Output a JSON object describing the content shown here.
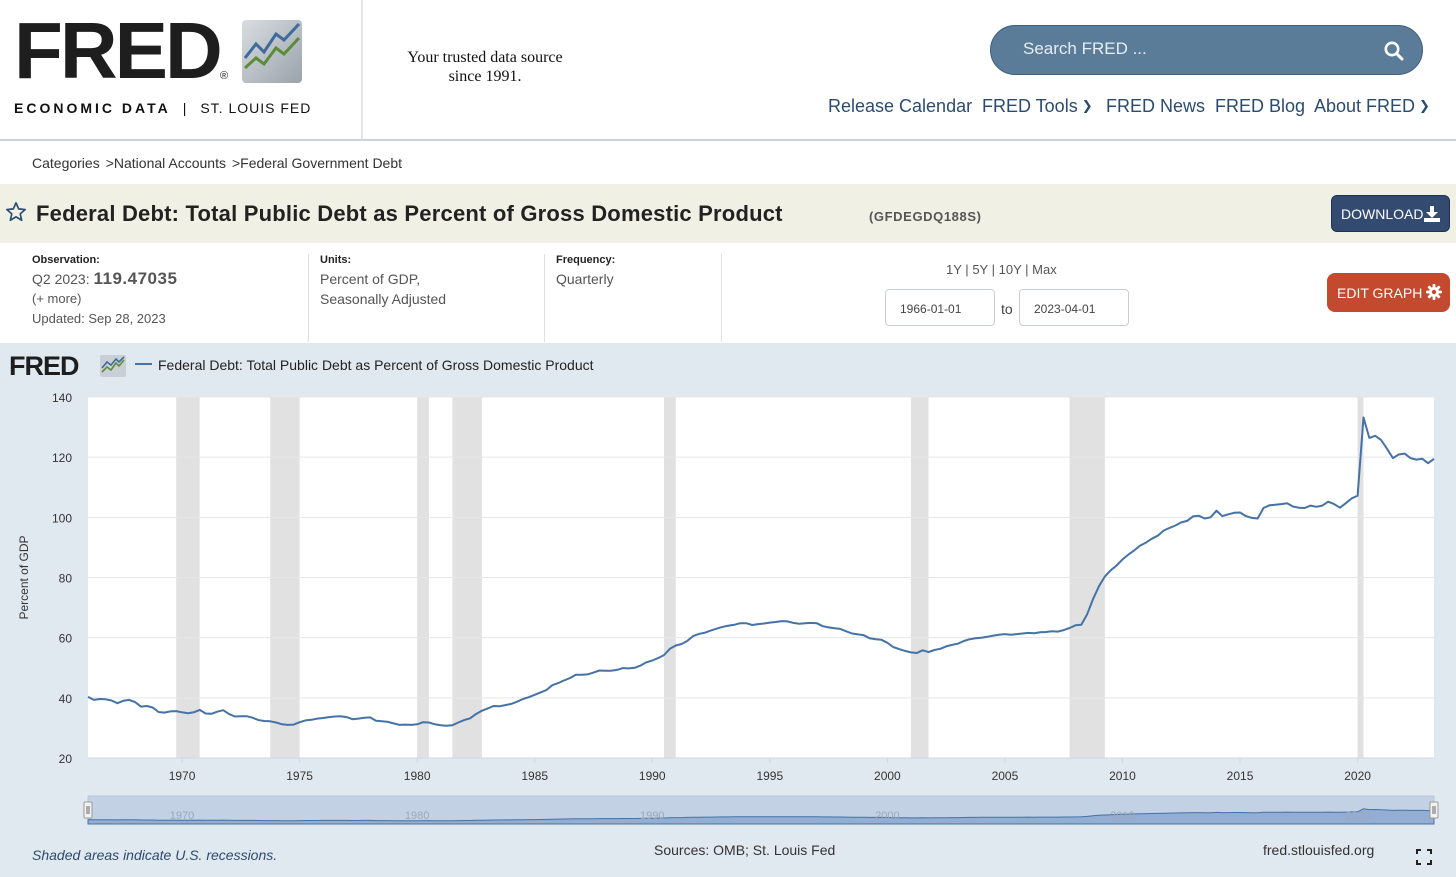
{
  "header": {
    "logo_text": "FRED",
    "logo_reg": "®",
    "logo_sub_bold": "ECONOMIC DATA",
    "logo_sub_sep": "|",
    "logo_sub_rest": "ST. LOUIS FED",
    "tagline_line1": "Your trusted data source",
    "tagline_line2": "since 1991.",
    "search_placeholder": "Search FRED ...",
    "nav": [
      {
        "label": "Release Calendar"
      },
      {
        "label": "FRED Tools"
      },
      {
        "label": "FRED News"
      },
      {
        "label": "FRED Blog"
      },
      {
        "label": "About FRED"
      }
    ],
    "colors": {
      "search_bg": "#5b7c99",
      "nav_text": "#2a4b72"
    }
  },
  "breadcrumb": [
    {
      "label": "Categories"
    },
    {
      "label": "National Accounts"
    },
    {
      "label": "Federal Government Debt"
    }
  ],
  "breadcrumb_sep": ">",
  "series": {
    "title": "Federal Debt: Total Public Debt as Percent of Gross Domestic Product",
    "id": "(GFDEGDQ188S)",
    "download_label": "DOWNLOAD",
    "edit_label": "EDIT GRAPH"
  },
  "meta": {
    "observation_label": "Observation:",
    "observation_period": "Q2 2023:",
    "observation_value": "119.47035",
    "more_label": "(+ more)",
    "updated": "Updated: Sep 28, 2023",
    "units_label": "Units:",
    "units_line1": "Percent of GDP,",
    "units_line2": "Seasonally Adjusted",
    "frequency_label": "Frequency:",
    "frequency_value": "Quarterly"
  },
  "range": {
    "links": [
      "1Y",
      "5Y",
      "10Y",
      "Max"
    ],
    "sep": "|",
    "start": "1966-01-01",
    "to_label": "to",
    "end": "2023-04-01"
  },
  "chart_logo": "FRED",
  "chart_data": {
    "type": "line",
    "title": "",
    "legend": [
      "Federal Debt: Total Public Debt as Percent of Gross Domestic Product"
    ],
    "xlabel": "",
    "ylabel": "Percent of GDP",
    "ylim": [
      20,
      140
    ],
    "yticks": [
      20,
      40,
      60,
      80,
      100,
      120,
      140
    ],
    "xlim": [
      1966.0,
      2023.25
    ],
    "xticks": [
      1970,
      1975,
      1980,
      1985,
      1990,
      1995,
      2000,
      2005,
      2010,
      2015,
      2020
    ],
    "navigator_labels": [
      1970,
      1980,
      1990,
      2000,
      2010,
      2020
    ],
    "grid": true,
    "line_color": "#4572a7",
    "recessions": [
      [
        1969.75,
        1970.75
      ],
      [
        1973.75,
        1975.0
      ],
      [
        1980.0,
        1980.5
      ],
      [
        1981.5,
        1982.75
      ],
      [
        1990.5,
        1991.0
      ],
      [
        2001.0,
        2001.75
      ],
      [
        2007.75,
        2009.25
      ],
      [
        2020.0,
        2020.25
      ]
    ],
    "series": [
      {
        "name": "Federal Debt: Total Public Debt as Percent of Gross Domestic Product",
        "points": [
          [
            1966.0,
            40.3
          ],
          [
            1966.25,
            39.3
          ],
          [
            1966.5,
            39.6
          ],
          [
            1966.75,
            39.5
          ],
          [
            1967.0,
            39.1
          ],
          [
            1967.25,
            38.2
          ],
          [
            1967.5,
            39.0
          ],
          [
            1967.75,
            39.3
          ],
          [
            1968.0,
            38.6
          ],
          [
            1968.25,
            37.1
          ],
          [
            1968.5,
            37.3
          ],
          [
            1968.75,
            36.8
          ],
          [
            1969.0,
            35.3
          ],
          [
            1969.25,
            35.1
          ],
          [
            1969.5,
            35.5
          ],
          [
            1969.75,
            35.6
          ],
          [
            1970.0,
            35.2
          ],
          [
            1970.25,
            34.9
          ],
          [
            1970.5,
            35.2
          ],
          [
            1970.75,
            36.0
          ],
          [
            1971.0,
            34.8
          ],
          [
            1971.25,
            34.7
          ],
          [
            1971.5,
            35.4
          ],
          [
            1971.75,
            35.9
          ],
          [
            1972.0,
            34.6
          ],
          [
            1972.25,
            33.8
          ],
          [
            1972.5,
            33.9
          ],
          [
            1972.75,
            33.9
          ],
          [
            1973.0,
            33.4
          ],
          [
            1973.25,
            32.6
          ],
          [
            1973.5,
            32.3
          ],
          [
            1973.75,
            32.2
          ],
          [
            1974.0,
            31.8
          ],
          [
            1974.25,
            31.2
          ],
          [
            1974.5,
            31.0
          ],
          [
            1974.75,
            31.1
          ],
          [
            1975.0,
            31.9
          ],
          [
            1975.25,
            32.5
          ],
          [
            1975.5,
            32.7
          ],
          [
            1975.75,
            33.1
          ],
          [
            1976.0,
            33.3
          ],
          [
            1976.25,
            33.6
          ],
          [
            1976.5,
            33.8
          ],
          [
            1976.75,
            33.9
          ],
          [
            1977.0,
            33.6
          ],
          [
            1977.25,
            32.9
          ],
          [
            1977.5,
            33.1
          ],
          [
            1977.75,
            33.4
          ],
          [
            1978.0,
            33.5
          ],
          [
            1978.25,
            32.4
          ],
          [
            1978.5,
            32.2
          ],
          [
            1978.75,
            32.0
          ],
          [
            1979.0,
            31.5
          ],
          [
            1979.25,
            31.0
          ],
          [
            1979.5,
            31.1
          ],
          [
            1979.75,
            31.0
          ],
          [
            1980.0,
            31.2
          ],
          [
            1980.25,
            31.9
          ],
          [
            1980.5,
            31.8
          ],
          [
            1980.75,
            31.2
          ],
          [
            1981.0,
            30.9
          ],
          [
            1981.25,
            30.7
          ],
          [
            1981.5,
            30.9
          ],
          [
            1981.75,
            31.8
          ],
          [
            1982.0,
            32.6
          ],
          [
            1982.25,
            33.2
          ],
          [
            1982.5,
            34.6
          ],
          [
            1982.75,
            35.7
          ],
          [
            1983.0,
            36.5
          ],
          [
            1983.25,
            37.3
          ],
          [
            1983.5,
            37.2
          ],
          [
            1983.75,
            37.6
          ],
          [
            1984.0,
            38.0
          ],
          [
            1984.25,
            38.7
          ],
          [
            1984.5,
            39.6
          ],
          [
            1984.75,
            40.2
          ],
          [
            1985.0,
            41.0
          ],
          [
            1985.25,
            41.8
          ],
          [
            1985.5,
            42.6
          ],
          [
            1985.75,
            44.2
          ],
          [
            1986.0,
            44.9
          ],
          [
            1986.25,
            45.8
          ],
          [
            1986.5,
            46.6
          ],
          [
            1986.75,
            47.7
          ],
          [
            1987.0,
            47.7
          ],
          [
            1987.25,
            47.8
          ],
          [
            1987.5,
            48.4
          ],
          [
            1987.75,
            49.1
          ],
          [
            1988.0,
            49.0
          ],
          [
            1988.25,
            49.0
          ],
          [
            1988.5,
            49.3
          ],
          [
            1988.75,
            49.9
          ],
          [
            1989.0,
            49.8
          ],
          [
            1989.25,
            50.0
          ],
          [
            1989.5,
            50.7
          ],
          [
            1989.75,
            51.8
          ],
          [
            1990.0,
            52.4
          ],
          [
            1990.25,
            53.2
          ],
          [
            1990.5,
            54.2
          ],
          [
            1990.75,
            56.3
          ],
          [
            1991.0,
            57.4
          ],
          [
            1991.25,
            57.9
          ],
          [
            1991.5,
            59.0
          ],
          [
            1991.75,
            60.6
          ],
          [
            1992.0,
            61.3
          ],
          [
            1992.25,
            61.7
          ],
          [
            1992.5,
            62.4
          ],
          [
            1992.75,
            63.0
          ],
          [
            1993.0,
            63.6
          ],
          [
            1993.25,
            64.0
          ],
          [
            1993.5,
            64.3
          ],
          [
            1993.75,
            64.8
          ],
          [
            1994.0,
            64.8
          ],
          [
            1994.25,
            64.2
          ],
          [
            1994.5,
            64.5
          ],
          [
            1994.75,
            64.7
          ],
          [
            1995.0,
            65.0
          ],
          [
            1995.25,
            65.2
          ],
          [
            1995.5,
            65.5
          ],
          [
            1995.75,
            65.4
          ],
          [
            1996.0,
            64.9
          ],
          [
            1996.25,
            64.6
          ],
          [
            1996.5,
            64.8
          ],
          [
            1996.75,
            64.9
          ],
          [
            1997.0,
            64.8
          ],
          [
            1997.25,
            63.8
          ],
          [
            1997.5,
            63.4
          ],
          [
            1997.75,
            63.1
          ],
          [
            1998.0,
            62.9
          ],
          [
            1998.25,
            62.1
          ],
          [
            1998.5,
            61.4
          ],
          [
            1998.75,
            61.1
          ],
          [
            1999.0,
            60.8
          ],
          [
            1999.25,
            59.8
          ],
          [
            1999.5,
            59.5
          ],
          [
            1999.75,
            59.3
          ],
          [
            2000.0,
            58.3
          ],
          [
            2000.25,
            56.9
          ],
          [
            2000.5,
            56.2
          ],
          [
            2000.75,
            55.6
          ],
          [
            2001.0,
            55.1
          ],
          [
            2001.25,
            54.9
          ],
          [
            2001.5,
            55.8
          ],
          [
            2001.75,
            55.2
          ],
          [
            2002.0,
            55.9
          ],
          [
            2002.25,
            56.3
          ],
          [
            2002.5,
            57.1
          ],
          [
            2002.75,
            57.6
          ],
          [
            2003.0,
            58.0
          ],
          [
            2003.25,
            58.9
          ],
          [
            2003.5,
            59.5
          ],
          [
            2003.75,
            59.8
          ],
          [
            2004.0,
            60.0
          ],
          [
            2004.25,
            60.3
          ],
          [
            2004.5,
            60.7
          ],
          [
            2004.75,
            61.0
          ],
          [
            2005.0,
            61.2
          ],
          [
            2005.25,
            61.0
          ],
          [
            2005.5,
            61.2
          ],
          [
            2005.75,
            61.4
          ],
          [
            2006.0,
            61.6
          ],
          [
            2006.25,
            61.5
          ],
          [
            2006.5,
            61.8
          ],
          [
            2006.75,
            61.9
          ],
          [
            2007.0,
            62.1
          ],
          [
            2007.25,
            62.0
          ],
          [
            2007.5,
            62.5
          ],
          [
            2007.75,
            63.2
          ],
          [
            2008.0,
            64.1
          ],
          [
            2008.25,
            64.3
          ],
          [
            2008.5,
            67.8
          ],
          [
            2008.75,
            72.9
          ],
          [
            2009.0,
            77.1
          ],
          [
            2009.25,
            80.3
          ],
          [
            2009.5,
            82.4
          ],
          [
            2009.75,
            84.0
          ],
          [
            2010.0,
            86.0
          ],
          [
            2010.25,
            87.6
          ],
          [
            2010.5,
            89.0
          ],
          [
            2010.75,
            90.6
          ],
          [
            2011.0,
            91.6
          ],
          [
            2011.25,
            92.9
          ],
          [
            2011.5,
            93.9
          ],
          [
            2011.75,
            95.6
          ],
          [
            2012.0,
            96.5
          ],
          [
            2012.25,
            97.3
          ],
          [
            2012.5,
            98.3
          ],
          [
            2012.75,
            98.8
          ],
          [
            2013.0,
            100.3
          ],
          [
            2013.25,
            100.5
          ],
          [
            2013.5,
            99.6
          ],
          [
            2013.75,
            100.0
          ],
          [
            2014.0,
            102.2
          ],
          [
            2014.25,
            100.4
          ],
          [
            2014.5,
            101.0
          ],
          [
            2014.75,
            101.5
          ],
          [
            2015.0,
            101.6
          ],
          [
            2015.25,
            100.4
          ],
          [
            2015.5,
            99.8
          ],
          [
            2015.75,
            99.6
          ],
          [
            2016.0,
            103.1
          ],
          [
            2016.25,
            104.0
          ],
          [
            2016.5,
            104.2
          ],
          [
            2016.75,
            104.4
          ],
          [
            2017.0,
            104.7
          ],
          [
            2017.25,
            103.6
          ],
          [
            2017.5,
            103.2
          ],
          [
            2017.75,
            103.1
          ],
          [
            2018.0,
            103.9
          ],
          [
            2018.25,
            103.5
          ],
          [
            2018.5,
            103.9
          ],
          [
            2018.75,
            105.2
          ],
          [
            2019.0,
            104.4
          ],
          [
            2019.25,
            103.2
          ],
          [
            2019.5,
            104.7
          ],
          [
            2019.75,
            106.3
          ],
          [
            2020.0,
            107.2
          ],
          [
            2020.25,
            133.2
          ],
          [
            2020.5,
            126.4
          ],
          [
            2020.75,
            127.1
          ],
          [
            2021.0,
            125.7
          ],
          [
            2021.25,
            122.8
          ],
          [
            2021.5,
            119.7
          ],
          [
            2021.75,
            120.9
          ],
          [
            2022.0,
            121.2
          ],
          [
            2022.25,
            119.7
          ],
          [
            2022.5,
            119.2
          ],
          [
            2022.75,
            119.5
          ],
          [
            2023.0,
            118.0
          ],
          [
            2023.25,
            119.47035
          ]
        ]
      }
    ]
  },
  "footer": {
    "note": "Shaded areas indicate U.S. recessions.",
    "sources": "Sources: OMB; St. Louis Fed",
    "site": "fred.stlouisfed.org"
  }
}
